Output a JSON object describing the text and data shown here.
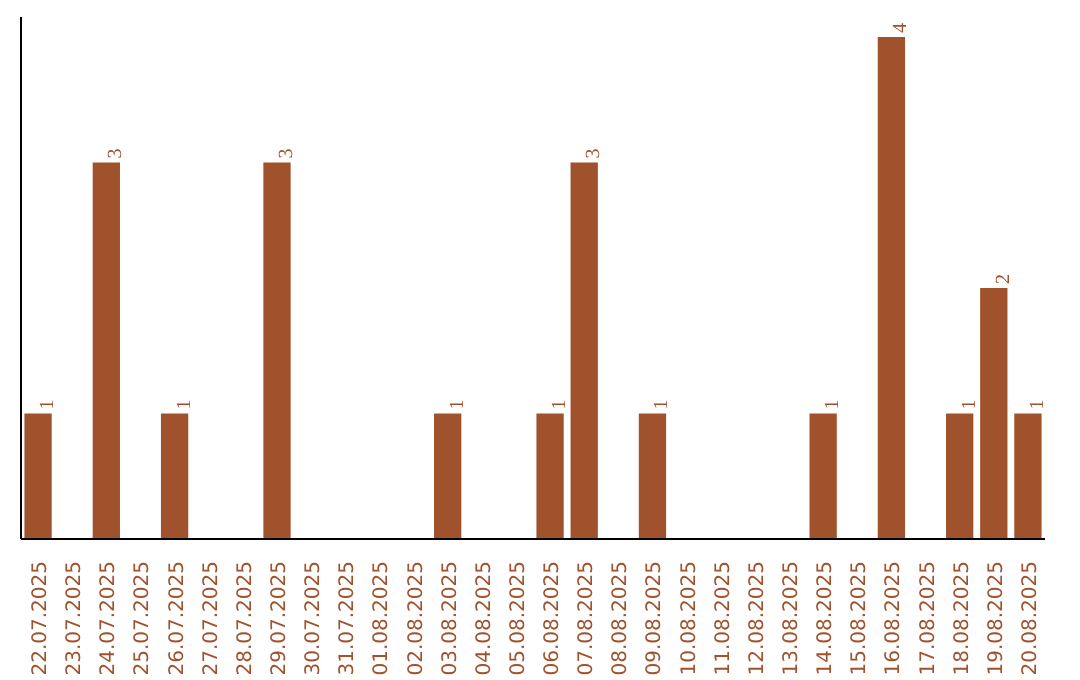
{
  "chart_data": {
    "type": "bar",
    "categories": [
      "22.07.2025",
      "23.07.2025",
      "24.07.2025",
      "25.07.2025",
      "26.07.2025",
      "27.07.2025",
      "28.07.2025",
      "29.07.2025",
      "30.07.2025",
      "31.07.2025",
      "01.08.2025",
      "02.08.2025",
      "03.08.2025",
      "04.08.2025",
      "05.08.2025",
      "06.08.2025",
      "07.08.2025",
      "08.08.2025",
      "09.08.2025",
      "10.08.2025",
      "11.08.2025",
      "12.08.2025",
      "13.08.2025",
      "14.08.2025",
      "15.08.2025",
      "16.08.2025",
      "17.08.2025",
      "18.08.2025",
      "19.08.2025",
      "20.08.2025"
    ],
    "values": [
      1,
      0,
      3,
      0,
      1,
      0,
      0,
      3,
      0,
      0,
      0,
      0,
      1,
      0,
      0,
      1,
      3,
      0,
      1,
      0,
      0,
      0,
      0,
      1,
      0,
      4,
      0,
      1,
      2,
      1
    ],
    "value_labels": [
      "1",
      null,
      "3",
      null,
      "1",
      null,
      null,
      "3",
      null,
      null,
      null,
      null,
      "1",
      null,
      null,
      "1",
      "3",
      null,
      "1",
      null,
      null,
      null,
      null,
      "1",
      null,
      "4",
      null,
      "1",
      "2",
      "1"
    ],
    "color": "#a0522d",
    "grid": false,
    "tick_labels": "x"
  }
}
